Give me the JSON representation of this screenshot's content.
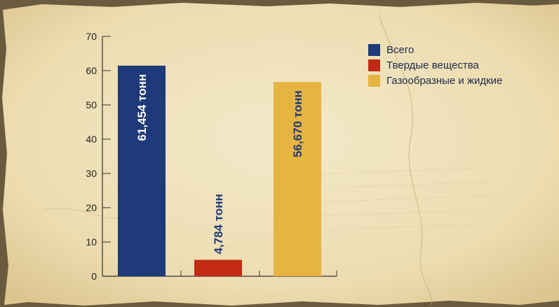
{
  "chart_data": {
    "type": "bar",
    "categories": [
      "Всего",
      "Твердые вещества",
      "Газообразные и жидкие"
    ],
    "values": [
      61.454,
      4.784,
      56.67
    ],
    "data_labels": [
      "61,454 тонн",
      "4,784 тонн",
      "56,670 тонн"
    ],
    "colors": [
      "#1e3a78",
      "#c22a14",
      "#e6b441"
    ],
    "label_colors": [
      "#ffffff",
      "#1e3a78",
      "#1e3a78"
    ],
    "ylim": [
      0,
      70
    ],
    "yticks": [
      "0",
      "10",
      "20",
      "30",
      "40",
      "50",
      "60",
      "70"
    ],
    "title": "",
    "xlabel": "",
    "ylabel": "",
    "legend": [
      {
        "label": "Всего",
        "color": "#1e3a78"
      },
      {
        "label": "Твердые вещества",
        "color": "#c22a14"
      },
      {
        "label": "Газообразные и жидкие",
        "color": "#e6b441"
      }
    ],
    "legend_position": "top-right",
    "grid": false
  },
  "background": {
    "paper_color": "#efe3bf",
    "edge_color": "#6a5a3e"
  }
}
